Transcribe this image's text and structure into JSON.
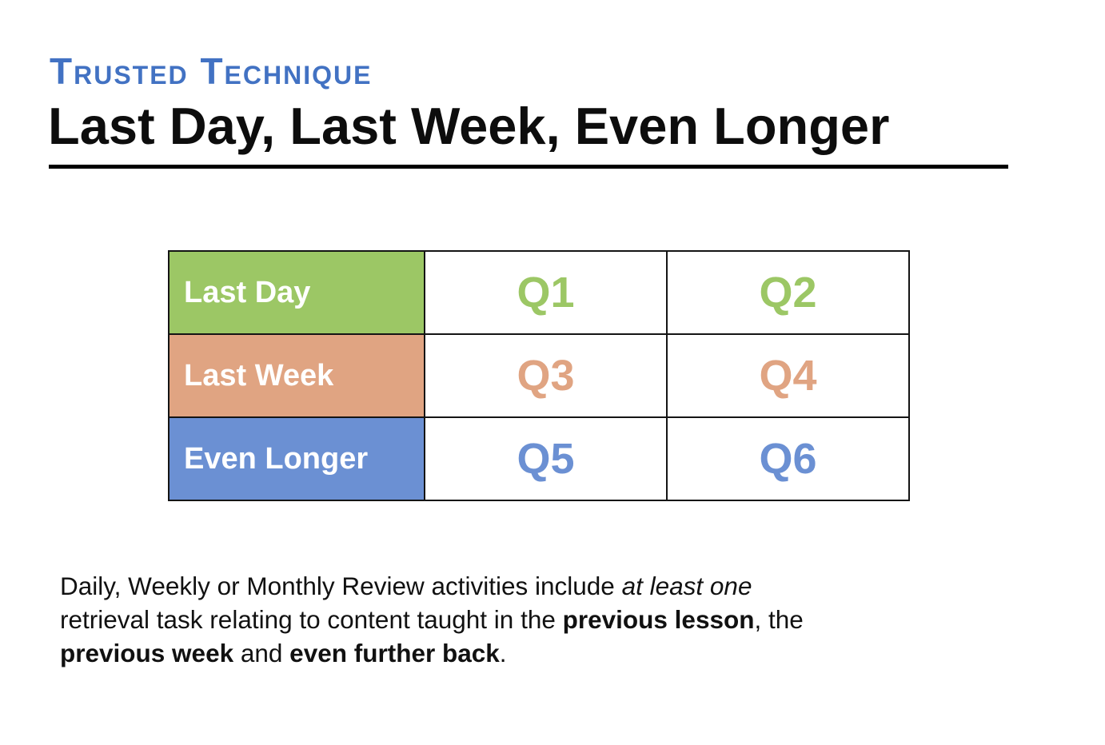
{
  "header": {
    "eyebrow": "Trusted Technique",
    "title": "Last Day, Last Week, Even Longer"
  },
  "table": {
    "rows": [
      {
        "label": "Last Day",
        "color": "#9CC765",
        "cells": [
          "Q1",
          "Q2"
        ]
      },
      {
        "label": "Last Week",
        "color": "#E0A482",
        "cells": [
          "Q3",
          "Q4"
        ]
      },
      {
        "label": "Even Longer",
        "color": "#6B90D3",
        "cells": [
          "Q5",
          "Q6"
        ]
      }
    ]
  },
  "paragraph": {
    "lines": [
      [
        {
          "t": "Daily, Weekly or Monthly Review activities include "
        },
        {
          "t": "at least one",
          "style": "italic"
        }
      ],
      [
        {
          "t": "retrieval task relating to content taught in the "
        },
        {
          "t": "previous lesson",
          "style": "bold"
        },
        {
          "t": ", the"
        }
      ],
      [
        {
          "t": "previous week",
          "style": "bold"
        },
        {
          "t": " and "
        },
        {
          "t": "even further back",
          "style": "bold"
        },
        {
          "t": "."
        }
      ]
    ]
  },
  "colors": {
    "eyebrow_blue": "#4272C3",
    "row_green": "#9CC765",
    "row_orange": "#E0A482",
    "row_blue": "#6B90D3",
    "table_border": "#141414",
    "title_black": "#0d0d0d",
    "underline_black": "#000000"
  }
}
